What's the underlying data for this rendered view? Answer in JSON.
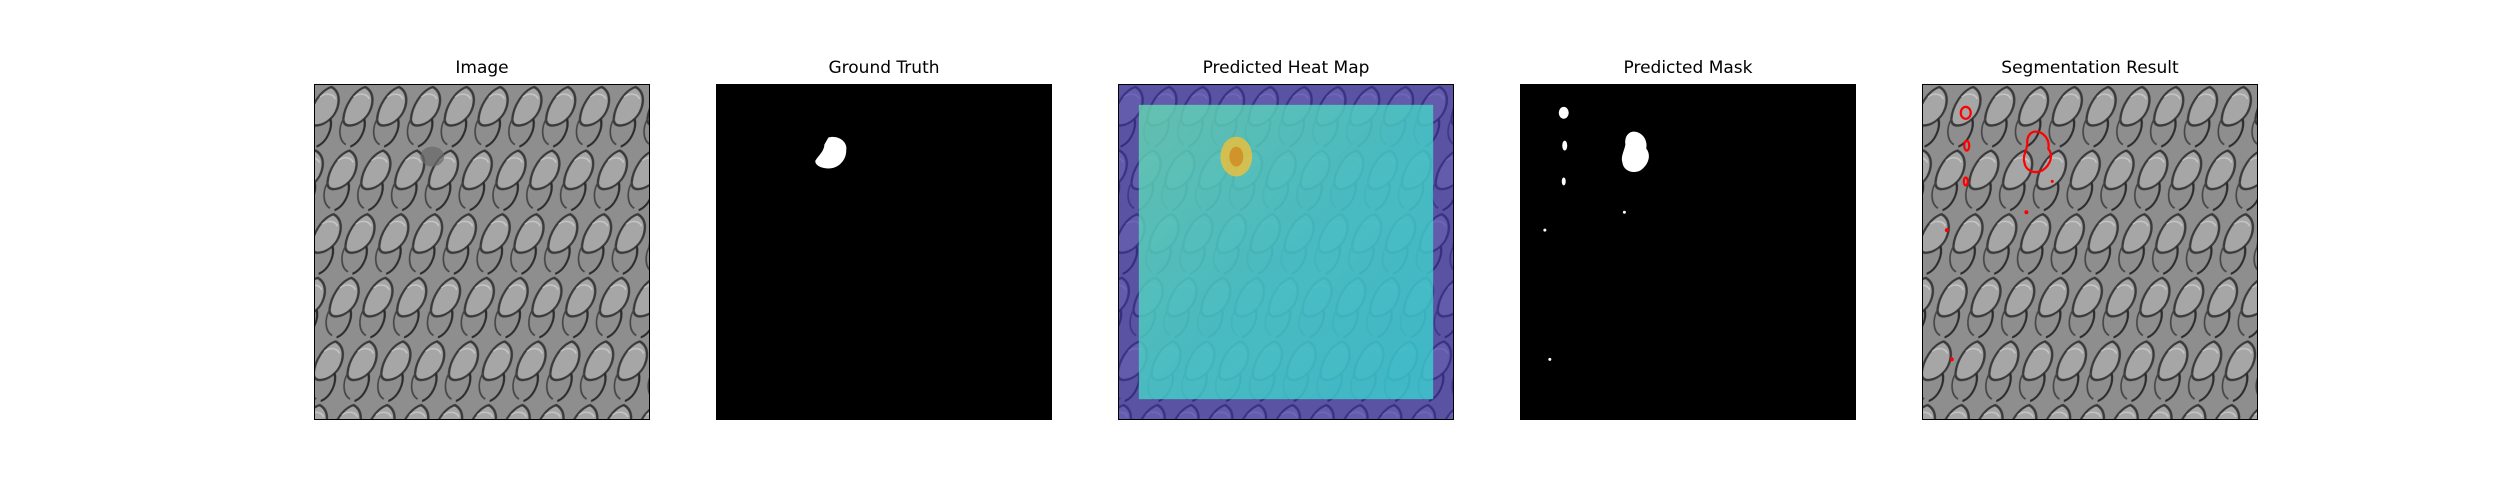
{
  "figure": {
    "panels": [
      {
        "title": "Image",
        "content": "texture-image"
      },
      {
        "title": "Ground Truth",
        "content": "binary-mask"
      },
      {
        "title": "Predicted Heat Map",
        "content": "heatmap-overlay"
      },
      {
        "title": "Predicted Mask",
        "content": "binary-mask"
      },
      {
        "title": "Segmentation Result",
        "content": "contour-overlay"
      }
    ],
    "colors": {
      "background": "#000000",
      "mask_fill": "#ffffff",
      "contour": "#ff0000",
      "heat_low": "#3a2fb0",
      "heat_mid": "#45d6c8",
      "heat_high": "#e8c040",
      "texture_base": "#8e8e8e"
    }
  }
}
